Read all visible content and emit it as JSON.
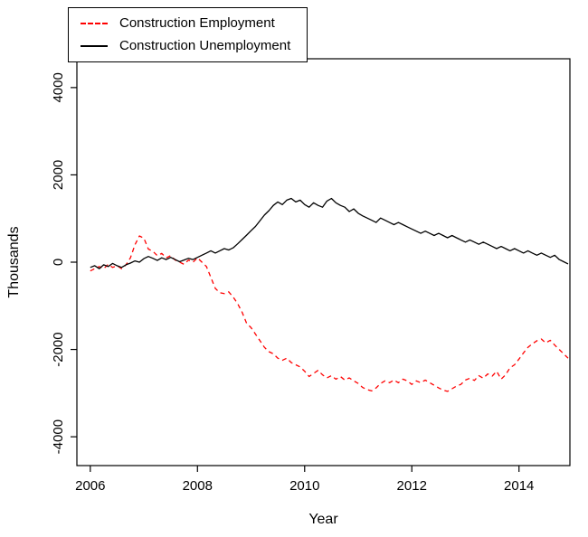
{
  "chart_data": {
    "type": "line",
    "title": "",
    "xlabel": "Year",
    "ylabel": "Thousands",
    "xlim": [
      2005.75,
      2014.95
    ],
    "ylim": [
      -4660,
      4660
    ],
    "xticks": [
      2006,
      2008,
      2010,
      2012,
      2014
    ],
    "yticks": [
      -4000,
      -2000,
      0,
      2000,
      4000
    ],
    "grid": false,
    "legend_position": "top-left",
    "x_start": 2006,
    "x_step": 0.0833333,
    "series": [
      {
        "id": "construction-employment",
        "name": "Construction Employment",
        "color": "#ff0000",
        "dashed": true,
        "values": [
          -200,
          -150,
          -100,
          -150,
          -50,
          -120,
          -80,
          -150,
          -60,
          100,
          400,
          600,
          550,
          300,
          250,
          150,
          200,
          100,
          150,
          50,
          0,
          -50,
          50,
          0,
          100,
          0,
          -100,
          -350,
          -600,
          -700,
          -720,
          -680,
          -800,
          -950,
          -1150,
          -1400,
          -1500,
          -1650,
          -1800,
          -1950,
          -2050,
          -2100,
          -2200,
          -2250,
          -2200,
          -2300,
          -2350,
          -2400,
          -2500,
          -2620,
          -2550,
          -2480,
          -2580,
          -2650,
          -2600,
          -2680,
          -2620,
          -2700,
          -2650,
          -2720,
          -2780,
          -2870,
          -2920,
          -2950,
          -2880,
          -2780,
          -2720,
          -2760,
          -2700,
          -2760,
          -2680,
          -2720,
          -2800,
          -2720,
          -2760,
          -2700,
          -2760,
          -2820,
          -2880,
          -2930,
          -2960,
          -2900,
          -2840,
          -2800,
          -2700,
          -2660,
          -2710,
          -2600,
          -2660,
          -2560,
          -2610,
          -2500,
          -2680,
          -2580,
          -2420,
          -2350,
          -2220,
          -2080,
          -1950,
          -1870,
          -1800,
          -1760,
          -1850,
          -1790,
          -1900,
          -2000,
          -2100,
          -2200
        ]
      },
      {
        "id": "construction-unemployment",
        "name": "Construction Unemployment",
        "color": "#000000",
        "dashed": false,
        "values": [
          -120,
          -80,
          -150,
          -60,
          -100,
          -30,
          -80,
          -120,
          -60,
          -20,
          30,
          0,
          80,
          130,
          90,
          40,
          100,
          60,
          110,
          60,
          10,
          50,
          90,
          60,
          110,
          160,
          210,
          260,
          210,
          260,
          310,
          280,
          330,
          420,
          520,
          620,
          720,
          820,
          950,
          1080,
          1180,
          1300,
          1380,
          1320,
          1420,
          1460,
          1380,
          1420,
          1320,
          1260,
          1360,
          1300,
          1260,
          1400,
          1460,
          1360,
          1300,
          1260,
          1160,
          1220,
          1120,
          1060,
          1010,
          960,
          910,
          1010,
          960,
          910,
          860,
          910,
          860,
          810,
          760,
          710,
          660,
          710,
          660,
          610,
          660,
          610,
          560,
          610,
          560,
          510,
          460,
          510,
          460,
          410,
          460,
          410,
          360,
          310,
          360,
          310,
          260,
          310,
          260,
          210,
          260,
          210,
          160,
          210,
          160,
          110,
          160,
          60,
          10,
          -40
        ]
      }
    ]
  }
}
